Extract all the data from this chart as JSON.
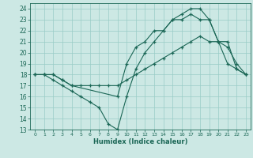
{
  "xlabel": "Humidex (Indice chaleur)",
  "bg_color": "#cce8e4",
  "grid_color": "#99ccc6",
  "line_color": "#1a6655",
  "xlim": [
    -0.5,
    23.5
  ],
  "ylim": [
    13,
    24.5
  ],
  "xticks": [
    0,
    1,
    2,
    3,
    4,
    5,
    6,
    7,
    8,
    9,
    10,
    11,
    12,
    13,
    14,
    15,
    16,
    17,
    18,
    19,
    20,
    21,
    22,
    23
  ],
  "yticks": [
    13,
    14,
    15,
    16,
    17,
    18,
    19,
    20,
    21,
    22,
    23,
    24
  ],
  "series1_x": [
    0,
    1,
    2,
    3,
    4,
    5,
    6,
    7,
    8,
    9,
    10,
    11,
    12,
    13,
    14,
    15,
    16,
    17,
    18,
    19,
    20,
    21,
    22,
    23
  ],
  "series1_y": [
    18,
    18,
    17.5,
    17,
    16.5,
    16,
    15.5,
    15,
    13.5,
    13,
    16,
    18.5,
    20,
    21,
    22,
    23,
    23.5,
    24,
    24,
    23,
    21,
    19,
    18.5,
    18
  ],
  "series2_x": [
    0,
    1,
    2,
    3,
    4,
    5,
    6,
    7,
    8,
    9,
    10,
    11,
    12,
    13,
    14,
    15,
    16,
    17,
    18,
    19,
    20,
    21,
    22,
    23
  ],
  "series2_y": [
    18,
    18,
    18,
    17.5,
    17,
    17,
    17,
    17,
    17,
    17,
    17.5,
    18,
    18.5,
    19,
    19.5,
    20,
    20.5,
    21,
    21.5,
    21,
    21,
    20.5,
    19,
    18
  ],
  "series3_x": [
    0,
    1,
    2,
    3,
    4,
    9,
    10,
    11,
    12,
    13,
    14,
    15,
    16,
    17,
    18,
    19,
    20,
    21,
    22,
    23
  ],
  "series3_y": [
    18,
    18,
    18,
    17.5,
    17,
    16,
    19,
    20.5,
    21,
    22,
    22,
    23,
    23,
    23.5,
    23,
    23,
    21,
    21,
    18.5,
    18
  ]
}
